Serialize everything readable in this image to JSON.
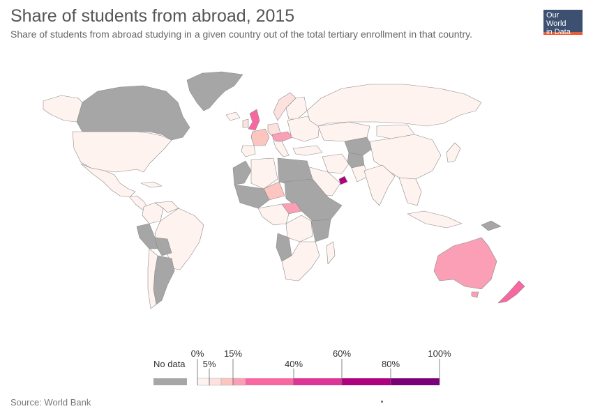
{
  "header": {
    "title": "Share of students from abroad, 2015",
    "subtitle": "Share of students from abroad studying in a given country out of the total tertiary enrollment in that country."
  },
  "logo": {
    "line1": "Our World",
    "line2": "in Data"
  },
  "colors": {
    "no_data": "#a6a6a6",
    "bin_0_5": "#fff3f0",
    "bin_5_10": "#fde1de",
    "bin_10_15": "#fcc5c0",
    "bin_15_20": "#fa9fb5",
    "bin_20_40": "#f768a1",
    "bin_40_60": "#dd3497",
    "bin_60_80": "#ae017e",
    "bin_80_100": "#7a0177",
    "ocean": "#ffffff",
    "border": "#8a8a8a"
  },
  "legend": {
    "no_data_label": "No data",
    "tick_labels": [
      "0%",
      "5%",
      "15%",
      "40%",
      "60%",
      "80%",
      "100%"
    ]
  },
  "footer": {
    "source": "Source: World Bank"
  }
}
